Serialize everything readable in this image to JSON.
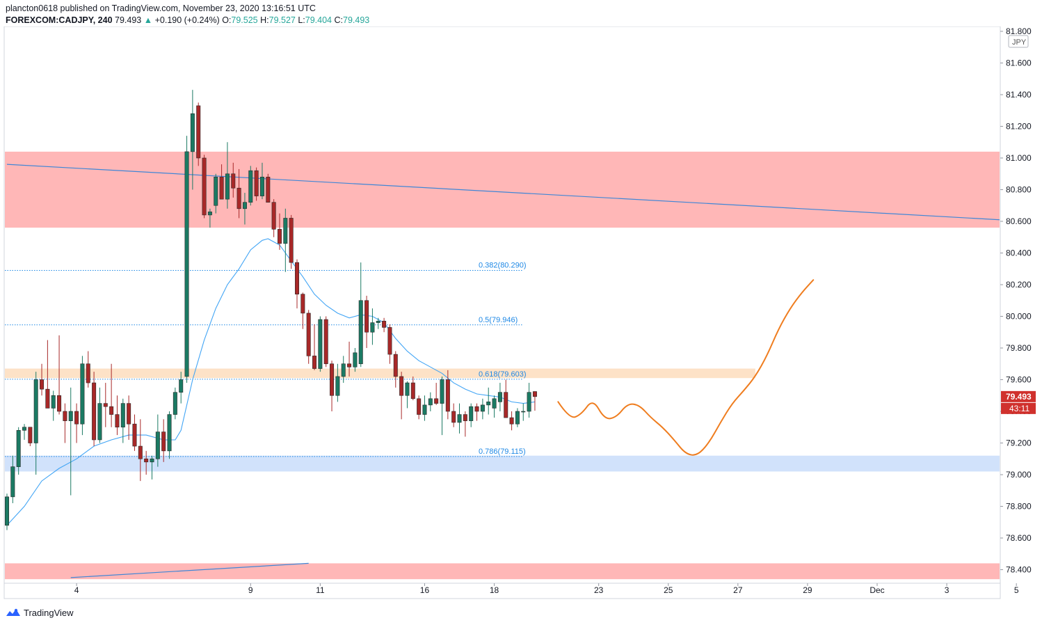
{
  "header": {
    "published_line": "plancton0618 published on TradingView.com, November 23, 2020 13:16:51 UTC",
    "symbol": "FOREXCOM:CADJPY",
    "interval": "240",
    "last": "79.493",
    "change_arrow": "▲",
    "change": "+0.190 (+0.24%)",
    "o_label": "O:",
    "o_value": "79.525",
    "h_label": "H:",
    "h_value": "79.527",
    "l_label": "L:",
    "l_value": "79.404",
    "c_label": "C:",
    "c_value": "79.493"
  },
  "footer": {
    "brand": "TradingView",
    "logo_icon": "tradingview-logo-icon"
  },
  "colors": {
    "up": "#26a69a",
    "down": "#ef5350",
    "candle_up_body": "#1b7a63",
    "candle_down_body": "#a82828",
    "resistance_zone": "#ffb3b3",
    "pivot_zone": "#fde0c4",
    "support_zone": "#cfe0fb",
    "ema": "#42a5f5",
    "trendline": "#3f86d6",
    "projection": "#ef7d1f",
    "fib": "#1e88e5"
  },
  "chart_data": {
    "type": "candlestick",
    "symbol": "FOREXCOM:CADJPY",
    "interval": "240",
    "y_axis": {
      "unit": "JPY",
      "ylim": [
        78.3,
        81.8
      ],
      "ticks": [
        "81.800",
        "81.600",
        "81.400",
        "81.200",
        "81.000",
        "80.800",
        "80.600",
        "80.400",
        "80.200",
        "80.000",
        "79.800",
        "79.600",
        "79.400",
        "79.200",
        "79.000",
        "78.800",
        "78.600",
        "78.400"
      ],
      "last_price_label": "79.493",
      "countdown_label": "43:11"
    },
    "x_axis": {
      "tick_labels": [
        "4",
        "9",
        "11",
        "16",
        "18",
        "23",
        "25",
        "27",
        "29",
        "Dec",
        "3",
        "5"
      ],
      "tick_index": [
        12,
        42,
        54,
        72,
        84,
        102,
        114,
        126,
        138,
        150,
        162,
        174
      ]
    },
    "candles": [
      [
        78.68,
        78.88,
        78.65,
        78.86
      ],
      [
        78.86,
        79.12,
        78.82,
        79.05
      ],
      [
        79.05,
        79.3,
        79.0,
        79.28
      ],
      [
        79.28,
        79.32,
        79.22,
        79.3
      ],
      [
        79.3,
        79.3,
        79.18,
        79.2
      ],
      [
        79.2,
        79.65,
        79.0,
        79.6
      ],
      [
        79.6,
        79.7,
        79.5,
        79.54
      ],
      [
        79.54,
        79.85,
        79.42,
        79.42
      ],
      [
        79.42,
        79.53,
        79.34,
        79.5
      ],
      [
        79.5,
        79.88,
        79.38,
        79.4
      ],
      [
        79.4,
        79.45,
        79.2,
        79.34
      ],
      [
        79.34,
        79.55,
        78.87,
        79.4
      ],
      [
        79.4,
        79.45,
        79.2,
        79.32
      ],
      [
        79.32,
        79.75,
        79.25,
        79.7
      ],
      [
        79.7,
        79.78,
        79.55,
        79.58
      ],
      [
        79.58,
        79.65,
        79.18,
        79.22
      ],
      [
        79.22,
        79.55,
        79.2,
        79.45
      ],
      [
        79.45,
        79.58,
        79.3,
        79.43
      ],
      [
        79.43,
        79.7,
        79.3,
        79.38
      ],
      [
        79.38,
        79.5,
        79.25,
        79.3
      ],
      [
        79.3,
        79.48,
        79.2,
        79.45
      ],
      [
        79.45,
        79.5,
        79.22,
        79.32
      ],
      [
        79.32,
        79.38,
        79.15,
        79.18
      ],
      [
        79.18,
        79.35,
        78.96,
        79.1
      ],
      [
        79.1,
        79.15,
        79.0,
        79.08
      ],
      [
        79.08,
        79.12,
        78.97,
        79.1
      ],
      [
        79.1,
        79.38,
        79.05,
        79.27
      ],
      [
        79.27,
        79.35,
        79.08,
        79.15
      ],
      [
        79.15,
        79.4,
        79.1,
        79.38
      ],
      [
        79.38,
        79.55,
        79.35,
        79.52
      ],
      [
        79.52,
        79.65,
        79.45,
        79.6
      ],
      [
        79.62,
        81.14,
        79.58,
        81.04
      ],
      [
        81.04,
        81.43,
        80.8,
        81.28
      ],
      [
        81.33,
        81.35,
        80.95,
        81.0
      ],
      [
        81.0,
        81.02,
        80.62,
        80.64
      ],
      [
        80.64,
        80.68,
        80.56,
        80.66
      ],
      [
        80.7,
        80.9,
        80.65,
        80.88
      ],
      [
        80.88,
        80.96,
        80.75,
        80.74
      ],
      [
        80.74,
        81.1,
        80.68,
        80.9
      ],
      [
        80.9,
        80.97,
        80.75,
        80.81
      ],
      [
        80.81,
        80.93,
        80.62,
        80.68
      ],
      [
        80.68,
        80.78,
        80.58,
        80.72
      ],
      [
        80.72,
        80.95,
        80.7,
        80.92
      ],
      [
        80.92,
        80.94,
        80.73,
        80.76
      ],
      [
        80.76,
        80.97,
        80.74,
        80.88
      ],
      [
        80.88,
        80.9,
        80.73,
        80.72
      ],
      [
        80.72,
        80.74,
        80.5,
        80.55
      ],
      [
        80.55,
        80.65,
        80.42,
        80.46
      ],
      [
        80.46,
        80.68,
        80.28,
        80.62
      ],
      [
        80.62,
        80.64,
        80.3,
        80.34
      ],
      [
        80.34,
        80.36,
        80.05,
        80.14
      ],
      [
        80.14,
        80.15,
        79.92,
        80.02
      ],
      [
        80.02,
        80.04,
        79.7,
        79.75
      ],
      [
        79.75,
        79.95,
        79.66,
        79.67
      ],
      [
        79.67,
        80.0,
        79.65,
        79.98
      ],
      [
        79.98,
        80.0,
        79.68,
        79.7
      ],
      [
        79.7,
        79.72,
        79.4,
        79.5
      ],
      [
        79.5,
        79.7,
        79.46,
        79.62
      ],
      [
        79.62,
        79.75,
        79.58,
        79.7
      ],
      [
        79.7,
        79.84,
        79.62,
        79.68
      ],
      [
        79.68,
        79.8,
        79.65,
        79.77
      ],
      [
        79.7,
        80.34,
        79.68,
        80.1
      ],
      [
        80.1,
        80.13,
        79.8,
        79.9
      ],
      [
        79.9,
        80.05,
        79.82,
        79.96
      ],
      [
        79.96,
        79.99,
        79.92,
        79.97
      ],
      [
        79.97,
        79.99,
        79.9,
        79.93
      ],
      [
        79.93,
        79.95,
        79.7,
        79.76
      ],
      [
        79.76,
        79.78,
        79.55,
        79.62
      ],
      [
        79.62,
        79.65,
        79.35,
        79.5
      ],
      [
        79.5,
        79.59,
        79.42,
        79.58
      ],
      [
        79.58,
        79.62,
        79.47,
        79.48
      ],
      [
        79.48,
        79.5,
        79.35,
        79.38
      ],
      [
        79.38,
        79.5,
        79.34,
        79.44
      ],
      [
        79.44,
        79.52,
        79.4,
        79.48
      ],
      [
        79.48,
        79.58,
        79.44,
        79.45
      ],
      [
        79.45,
        79.62,
        79.25,
        79.6
      ],
      [
        79.6,
        79.66,
        79.35,
        79.4
      ],
      [
        79.4,
        79.45,
        79.3,
        79.33
      ],
      [
        79.33,
        79.45,
        79.26,
        79.38
      ],
      [
        79.38,
        79.4,
        79.24,
        79.34
      ],
      [
        79.34,
        79.45,
        79.3,
        79.43
      ],
      [
        79.43,
        79.45,
        79.34,
        79.4
      ],
      [
        79.4,
        79.48,
        79.35,
        79.44
      ],
      [
        79.44,
        79.55,
        79.38,
        79.46
      ],
      [
        79.42,
        79.5,
        79.36,
        79.48
      ],
      [
        79.46,
        79.58,
        79.4,
        79.52
      ],
      [
        79.52,
        79.6,
        79.37,
        79.36
      ],
      [
        79.36,
        79.4,
        79.28,
        79.32
      ],
      [
        79.32,
        79.42,
        79.3,
        79.4
      ],
      [
        79.4,
        79.45,
        79.34,
        79.4
      ],
      [
        79.4,
        79.58,
        79.36,
        79.52
      ],
      [
        79.525,
        79.527,
        79.404,
        79.493
      ]
    ],
    "ema": [
      [
        0,
        78.68
      ],
      [
        3,
        78.8
      ],
      [
        6,
        78.96
      ],
      [
        9,
        79.04
      ],
      [
        12,
        79.1
      ],
      [
        15,
        79.18
      ],
      [
        18,
        79.22
      ],
      [
        21,
        79.25
      ],
      [
        24,
        79.25
      ],
      [
        27,
        79.22
      ],
      [
        29,
        79.22
      ],
      [
        30,
        79.28
      ],
      [
        32,
        79.6
      ],
      [
        34,
        79.85
      ],
      [
        36,
        80.05
      ],
      [
        38,
        80.2
      ],
      [
        40,
        80.3
      ],
      [
        42,
        80.42
      ],
      [
        44,
        80.48
      ],
      [
        45,
        80.49
      ],
      [
        47,
        80.45
      ],
      [
        49,
        80.35
      ],
      [
        51,
        80.25
      ],
      [
        53,
        80.14
      ],
      [
        55,
        80.07
      ],
      [
        57,
        80.02
      ],
      [
        59,
        79.99
      ],
      [
        61,
        80.01
      ],
      [
        63,
        80.0
      ],
      [
        65,
        79.96
      ],
      [
        67,
        79.86
      ],
      [
        69,
        79.78
      ],
      [
        71,
        79.72
      ],
      [
        73,
        79.68
      ],
      [
        75,
        79.64
      ],
      [
        77,
        79.58
      ],
      [
        79,
        79.54
      ],
      [
        81,
        79.51
      ],
      [
        83,
        79.5
      ],
      [
        85,
        79.49
      ],
      [
        87,
        79.46
      ],
      [
        89,
        79.45
      ],
      [
        91,
        79.46
      ]
    ],
    "zones": [
      {
        "name": "upper-resistance",
        "top": 81.04,
        "bottom": 80.56,
        "x_end": "right-edge"
      },
      {
        "name": "pivot",
        "top": 79.67,
        "bottom": 79.61,
        "x_end_index": 129
      },
      {
        "name": "support",
        "top": 79.12,
        "bottom": 79.02,
        "x_end": "right-edge"
      },
      {
        "name": "lower-resistance",
        "top": 78.44,
        "bottom": 78.34,
        "x_end": "right-edge"
      }
    ],
    "fib_levels": [
      {
        "label": "0.382(80.290)",
        "value": 80.29
      },
      {
        "label": "0.5(79.946)",
        "value": 79.946
      },
      {
        "label": "0.618(79.603)",
        "value": 79.603
      },
      {
        "label": "0.786(79.115)",
        "value": 79.115
      }
    ],
    "trendlines": [
      {
        "from": [
          0,
          80.96
        ],
        "to": [
          "right-edge",
          80.61
        ]
      },
      {
        "from": [
          11,
          78.35
        ],
        "to": [
          52,
          78.44
        ]
      }
    ],
    "projection": [
      [
        95,
        79.46
      ],
      [
        97,
        79.35
      ],
      [
        99,
        79.38
      ],
      [
        101,
        79.48
      ],
      [
        103,
        79.35
      ],
      [
        105,
        79.36
      ],
      [
        107,
        79.45
      ],
      [
        109,
        79.44
      ],
      [
        111,
        79.36
      ],
      [
        113,
        79.3
      ],
      [
        115,
        79.22
      ],
      [
        117,
        79.13
      ],
      [
        119,
        79.12
      ],
      [
        121,
        79.2
      ],
      [
        123,
        79.33
      ],
      [
        125,
        79.45
      ],
      [
        127,
        79.53
      ],
      [
        129,
        79.62
      ],
      [
        131,
        79.75
      ],
      [
        133,
        79.92
      ],
      [
        135,
        80.05
      ],
      [
        137,
        80.15
      ],
      [
        139,
        80.23
      ]
    ]
  }
}
